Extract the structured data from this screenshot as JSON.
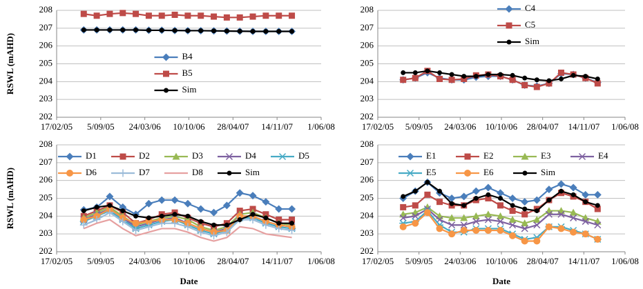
{
  "chart_data": [
    {
      "type": "line",
      "ylabel": "RSWL (mAHD)",
      "legend": "center",
      "grid": true,
      "x": [
        "2005-06-20",
        "2005-08-18",
        "2005-10-16",
        "2005-12-14",
        "2006-02-11",
        "2006-04-11",
        "2006-06-09",
        "2006-08-07",
        "2006-10-05",
        "2006-12-03",
        "2007-01-31",
        "2007-03-31",
        "2007-05-29",
        "2007-07-27",
        "2007-09-24",
        "2007-11-22",
        "2008-01-20"
      ],
      "xlim": [
        "2005-02-17",
        "2008-06-01"
      ],
      "xticks": [
        {
          "value": "2005-02-17",
          "label": "17/02/05"
        },
        {
          "value": "2005-09-05",
          "label": "5/09/05"
        },
        {
          "value": "2006-03-24",
          "label": "24/03/06"
        },
        {
          "value": "2006-10-10",
          "label": "10/10/06"
        },
        {
          "value": "2007-04-28",
          "label": "28/04/07"
        },
        {
          "value": "2007-11-14",
          "label": "14/11/07"
        },
        {
          "value": "2008-06-01",
          "label": "1/06/08"
        }
      ],
      "ylim": [
        202,
        208
      ],
      "yticks": [
        202,
        203,
        204,
        205,
        206,
        207,
        208
      ],
      "series": [
        {
          "name": "B4",
          "color": "#4a7ebb",
          "marker": "diamond",
          "values": [
            206.9,
            206.9,
            206.9,
            206.9,
            206.9,
            206.88,
            206.88,
            206.87,
            206.86,
            206.86,
            206.85,
            206.84,
            206.83,
            206.82,
            206.82,
            206.82,
            206.82
          ]
        },
        {
          "name": "B5",
          "color": "#be4b48",
          "marker": "square",
          "values": [
            207.8,
            207.7,
            207.8,
            207.85,
            207.8,
            207.7,
            207.7,
            207.75,
            207.7,
            207.7,
            207.65,
            207.6,
            207.6,
            207.65,
            207.7,
            207.7,
            207.7
          ]
        },
        {
          "name": "Sim",
          "color": "#000000",
          "marker": "dot",
          "values": [
            206.9,
            206.9,
            206.9,
            206.9,
            206.9,
            206.88,
            206.88,
            206.87,
            206.86,
            206.86,
            206.85,
            206.84,
            206.83,
            206.82,
            206.82,
            206.82,
            206.82
          ]
        }
      ]
    },
    {
      "type": "line",
      "legend": "upper right",
      "grid": true,
      "x": [
        "2005-06-20",
        "2005-08-18",
        "2005-10-16",
        "2005-12-14",
        "2006-02-11",
        "2006-04-11",
        "2006-06-09",
        "2006-08-07",
        "2006-10-05",
        "2006-12-03",
        "2007-01-31",
        "2007-03-31",
        "2007-05-29",
        "2007-07-27",
        "2007-09-24",
        "2007-11-22",
        "2008-01-20"
      ],
      "xlim": [
        "2005-02-17",
        "2008-06-01"
      ],
      "xticks": [
        {
          "value": "2005-02-17",
          "label": "17/02/05"
        },
        {
          "value": "2005-09-05",
          "label": "5/09/05"
        },
        {
          "value": "2006-03-24",
          "label": "24/03/06"
        },
        {
          "value": "2006-10-10",
          "label": "10/10/06"
        },
        {
          "value": "2007-04-28",
          "label": "28/04/07"
        },
        {
          "value": "2007-11-14",
          "label": "14/11/07"
        },
        {
          "value": "2008-06-01",
          "label": "1/06/08"
        }
      ],
      "ylim": [
        202,
        208
      ],
      "yticks": [
        202,
        203,
        204,
        205,
        206,
        207,
        208
      ],
      "series": [
        {
          "name": "C4",
          "color": "#4a7ebb",
          "marker": "diamond",
          "values": [
            204.1,
            204.2,
            204.5,
            204.2,
            204.1,
            204.1,
            204.25,
            204.3,
            204.3,
            204.1,
            203.8,
            203.75,
            203.9,
            204.45,
            204.4,
            204.2,
            203.95
          ]
        },
        {
          "name": "C5",
          "color": "#be4b48",
          "marker": "square",
          "values": [
            204.1,
            204.2,
            204.6,
            204.15,
            204.1,
            204.15,
            204.35,
            204.4,
            204.3,
            204.1,
            203.8,
            203.7,
            203.9,
            204.5,
            204.4,
            204.2,
            203.9
          ]
        },
        {
          "name": "Sim",
          "color": "#000000",
          "marker": "dot",
          "values": [
            204.5,
            204.5,
            204.6,
            204.5,
            204.4,
            204.3,
            204.3,
            204.4,
            204.4,
            204.35,
            204.2,
            204.1,
            204.05,
            204.15,
            204.35,
            204.3,
            204.15
          ]
        }
      ]
    },
    {
      "type": "line",
      "ylabel": "RSWL (mAHD)",
      "xlabel": "Date",
      "legend": "top",
      "grid": true,
      "x": [
        "2005-06-20",
        "2005-08-18",
        "2005-10-16",
        "2005-12-14",
        "2006-02-11",
        "2006-04-11",
        "2006-06-09",
        "2006-08-07",
        "2006-10-05",
        "2006-12-03",
        "2007-01-31",
        "2007-03-31",
        "2007-05-29",
        "2007-07-27",
        "2007-09-24",
        "2007-11-22",
        "2008-01-20"
      ],
      "xlim": [
        "2005-02-17",
        "2008-06-01"
      ],
      "xticks": [
        {
          "value": "2005-02-17",
          "label": "17/02/05"
        },
        {
          "value": "2005-09-05",
          "label": "5/09/05"
        },
        {
          "value": "2006-03-24",
          "label": "24/03/06"
        },
        {
          "value": "2006-10-10",
          "label": "10/10/06"
        },
        {
          "value": "2007-04-28",
          "label": "28/04/07"
        },
        {
          "value": "2007-11-14",
          "label": "14/11/07"
        },
        {
          "value": "2008-06-01",
          "label": "1/06/08"
        }
      ],
      "ylim": [
        202,
        208
      ],
      "yticks": [
        202,
        203,
        204,
        205,
        206,
        207,
        208
      ],
      "series": [
        {
          "name": "D1",
          "color": "#4a7ebb",
          "marker": "diamond",
          "values": [
            204.35,
            204.5,
            205.1,
            204.5,
            204.1,
            204.7,
            204.9,
            204.9,
            204.7,
            204.4,
            204.2,
            204.6,
            205.3,
            205.15,
            204.8,
            204.4,
            204.4
          ]
        },
        {
          "name": "D2",
          "color": "#be4b48",
          "marker": "square",
          "values": [
            204.0,
            204.3,
            204.6,
            204.2,
            203.6,
            203.8,
            204.1,
            204.2,
            203.9,
            203.6,
            203.4,
            203.6,
            204.3,
            204.4,
            204.1,
            203.8,
            203.8
          ]
        },
        {
          "name": "D3",
          "color": "#98b954",
          "marker": "triangle",
          "values": [
            203.9,
            204.2,
            204.5,
            204.0,
            203.5,
            203.7,
            203.9,
            204.0,
            203.8,
            203.4,
            203.2,
            203.4,
            204.1,
            204.2,
            203.9,
            203.6,
            203.5
          ]
        },
        {
          "name": "D4",
          "color": "#7d60a0",
          "marker": "x",
          "values": [
            203.8,
            204.1,
            204.4,
            203.9,
            203.4,
            203.6,
            203.8,
            203.9,
            203.6,
            203.3,
            203.1,
            203.3,
            204.0,
            204.0,
            203.7,
            203.5,
            203.4
          ]
        },
        {
          "name": "D5",
          "color": "#46aac5",
          "marker": "star",
          "values": [
            203.7,
            204.0,
            204.3,
            203.8,
            203.3,
            203.5,
            203.7,
            203.8,
            203.5,
            203.2,
            203.0,
            203.2,
            203.9,
            203.9,
            203.6,
            203.4,
            203.3
          ]
        },
        {
          "name": "D6",
          "color": "#f79646",
          "marker": "circle",
          "values": [
            203.8,
            204.0,
            204.4,
            203.9,
            203.6,
            203.7,
            203.8,
            203.8,
            203.6,
            203.3,
            203.1,
            203.2,
            204.0,
            204.0,
            203.7,
            203.5,
            203.4
          ]
        },
        {
          "name": "D7",
          "color": "#9bbbd9",
          "marker": "plus",
          "values": [
            203.5,
            203.8,
            204.2,
            203.7,
            203.2,
            203.4,
            203.6,
            203.6,
            203.4,
            203.1,
            202.9,
            203.1,
            203.8,
            203.8,
            203.5,
            203.3,
            203.2
          ]
        },
        {
          "name": "D8",
          "color": "#e6a0a0",
          "marker": "none",
          "values": [
            203.3,
            203.6,
            203.8,
            203.3,
            202.9,
            203.1,
            203.3,
            203.3,
            203.1,
            202.8,
            202.6,
            202.8,
            203.4,
            203.3,
            203.0,
            202.9,
            202.8
          ]
        },
        {
          "name": "Sim",
          "color": "#000000",
          "marker": "dot",
          "values": [
            204.3,
            204.5,
            204.6,
            204.3,
            204.0,
            203.9,
            204.0,
            204.1,
            204.0,
            203.7,
            203.5,
            203.5,
            203.8,
            204.1,
            203.9,
            203.6,
            203.6
          ]
        }
      ]
    },
    {
      "type": "line",
      "xlabel": "Date",
      "legend": "top",
      "grid": true,
      "x": [
        "2005-06-20",
        "2005-08-18",
        "2005-10-16",
        "2005-12-14",
        "2006-02-11",
        "2006-04-11",
        "2006-06-09",
        "2006-08-07",
        "2006-10-05",
        "2006-12-03",
        "2007-01-31",
        "2007-03-31",
        "2007-05-29",
        "2007-07-27",
        "2007-09-24",
        "2007-11-22",
        "2008-01-20"
      ],
      "xlim": [
        "2005-02-17",
        "2008-06-01"
      ],
      "xticks": [
        {
          "value": "2005-02-17",
          "label": "17/02/05"
        },
        {
          "value": "2005-09-05",
          "label": "5/09/05"
        },
        {
          "value": "2006-03-24",
          "label": "24/03/06"
        },
        {
          "value": "2006-10-10",
          "label": "10/10/06"
        },
        {
          "value": "2007-04-28",
          "label": "28/04/07"
        },
        {
          "value": "2007-11-14",
          "label": "14/11/07"
        },
        {
          "value": "2008-06-01",
          "label": "1/06/08"
        }
      ],
      "ylim": [
        202,
        208
      ],
      "yticks": [
        202,
        203,
        204,
        205,
        206,
        207,
        208
      ],
      "series": [
        {
          "name": "E1",
          "color": "#4a7ebb",
          "marker": "diamond",
          "values": [
            205.0,
            205.4,
            205.9,
            205.3,
            205.0,
            205.1,
            205.4,
            205.6,
            205.3,
            205.0,
            204.8,
            204.9,
            205.5,
            205.8,
            205.6,
            205.2,
            205.2
          ]
        },
        {
          "name": "E2",
          "color": "#be4b48",
          "marker": "square",
          "values": [
            204.5,
            204.6,
            205.2,
            204.8,
            204.6,
            204.6,
            204.9,
            205.0,
            204.6,
            204.3,
            204.1,
            204.4,
            204.9,
            205.3,
            205.1,
            204.8,
            204.4
          ]
        },
        {
          "name": "E3",
          "color": "#98b954",
          "marker": "triangle",
          "values": [
            204.1,
            204.2,
            204.5,
            204.0,
            203.9,
            203.9,
            204.0,
            204.1,
            204.0,
            203.8,
            203.6,
            203.8,
            204.3,
            204.3,
            204.2,
            203.9,
            203.7
          ]
        },
        {
          "name": "E4",
          "color": "#7d60a0",
          "marker": "x",
          "values": [
            203.9,
            204.0,
            204.4,
            203.8,
            203.5,
            203.5,
            203.7,
            203.8,
            203.7,
            203.5,
            203.3,
            203.5,
            204.1,
            204.1,
            203.9,
            203.7,
            203.5
          ]
        },
        {
          "name": "E5",
          "color": "#46aac5",
          "marker": "star",
          "values": [
            203.6,
            203.7,
            204.3,
            203.5,
            203.1,
            203.1,
            203.3,
            203.3,
            203.3,
            203.0,
            202.7,
            202.8,
            203.4,
            203.4,
            203.2,
            203.0,
            202.7
          ]
        },
        {
          "name": "E6",
          "color": "#f79646",
          "marker": "circle",
          "values": [
            203.4,
            203.6,
            204.2,
            203.3,
            203.0,
            203.2,
            203.2,
            203.2,
            203.2,
            202.9,
            202.6,
            202.6,
            203.4,
            203.3,
            203.1,
            203.0,
            202.7
          ]
        },
        {
          "name": "Sim",
          "color": "#000000",
          "marker": "dot",
          "values": [
            205.1,
            205.4,
            205.9,
            205.4,
            204.7,
            204.6,
            205.0,
            205.2,
            205.0,
            204.6,
            204.4,
            204.3,
            204.9,
            205.4,
            205.2,
            204.8,
            204.6
          ]
        }
      ]
    }
  ]
}
